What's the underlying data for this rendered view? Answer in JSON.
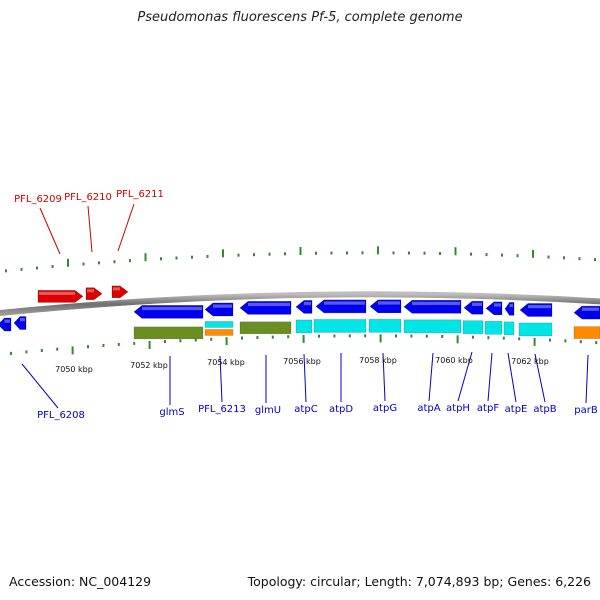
{
  "title": "Pseudomonas fluorescens Pf-5, complete genome",
  "footer": {
    "accession": "Accession: NC_004129",
    "summary": "Topology: circular; Length: 7,074,893 bp; Genes: 6,226"
  },
  "colors": {
    "backbone": "#7a7a7a",
    "gene_forward": "#dd0000",
    "gene_reverse": "#0000ee",
    "label_forward": "#cc0000",
    "label_reverse": "#0000cc",
    "cds_green": "#6b8e23",
    "cds_cyan": "#00e5e5",
    "cds_orange": "#ff8c00",
    "tick": "#2e8b2e"
  },
  "scale_labels": [
    "7050 kbp",
    "7052 kbp",
    "7054 kbp",
    "7056 kbp",
    "7058 kbp",
    "7060 kbp",
    "7062 kbp"
  ],
  "forward_labels": [
    "PFL_6209",
    "PFL_6210",
    "PFL_6211"
  ],
  "reverse_labels": [
    "PFL_6208",
    "glmS",
    "PFL_6213",
    "glmU",
    "atpC",
    "atpD",
    "atpG",
    "atpA",
    "atpH",
    "atpF",
    "atpE",
    "atpB",
    "parB"
  ]
}
